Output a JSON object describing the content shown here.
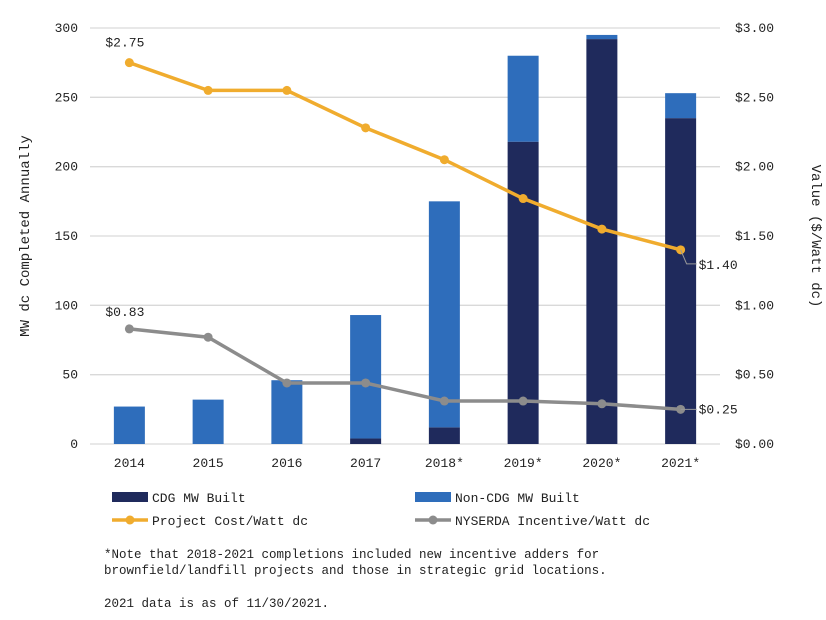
{
  "chart_data": {
    "type": "bar+line",
    "categories": [
      "2014",
      "2015",
      "2016",
      "2017",
      "2018*",
      "2019*",
      "2020*",
      "2021*"
    ],
    "ylabel": "MW dc Completed Annually",
    "y2label": "Value ($/Watt dc)",
    "ylim": [
      0,
      300
    ],
    "y2lim": [
      0,
      3
    ],
    "yticks": [
      "0",
      "50",
      "100",
      "150",
      "200",
      "250",
      "300"
    ],
    "y2ticks": [
      "$0.00",
      "$0.50",
      "$1.00",
      "$1.50",
      "$2.00",
      "$2.50",
      "$3.00"
    ],
    "grid": true,
    "legend_placement": "bottom",
    "bar_series": [
      {
        "name": "CDG MW Built",
        "color": "#1f2a5c",
        "values": [
          0,
          0,
          0,
          4,
          12,
          218,
          292,
          235
        ]
      },
      {
        "name": "Non-CDG MW Built",
        "color": "#2e6dbb",
        "values": [
          27,
          32,
          46,
          89,
          163,
          62,
          3,
          18
        ]
      }
    ],
    "line_series": [
      {
        "name": "Project Cost/Watt dc",
        "color": "#f0ac2e",
        "values": [
          2.75,
          2.55,
          2.55,
          2.28,
          2.05,
          1.77,
          1.55,
          1.4
        ]
      },
      {
        "name": "NYSERDA Incentive/Watt dc",
        "color": "#8c8c8c",
        "values": [
          0.83,
          0.77,
          0.44,
          0.44,
          0.31,
          0.31,
          0.29,
          0.25
        ]
      }
    ],
    "annotations": [
      "$2.75",
      "$1.40",
      "$0.83",
      "$0.25"
    ]
  },
  "note": "*Note that 2018-2021 completions included new incentive adders for\nbrownfield/landfill projects and those in strategic grid locations.",
  "as_of": "2021 data is as of 11/30/2021."
}
